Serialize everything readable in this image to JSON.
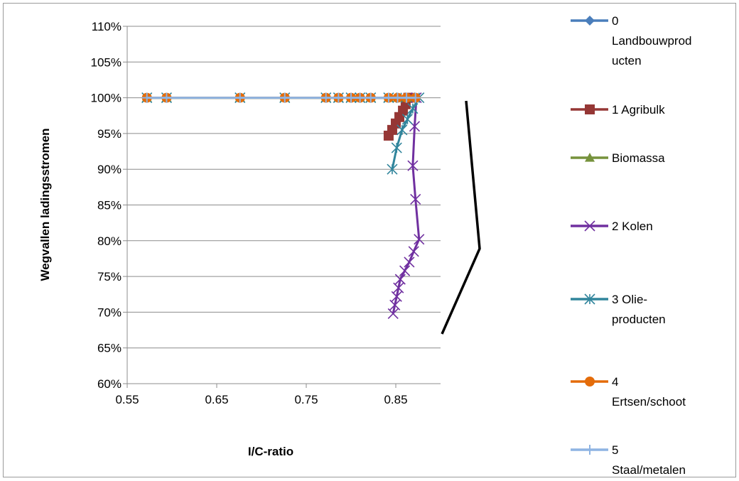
{
  "chart_data": {
    "type": "line",
    "title": "",
    "xlabel": "I/C-ratio",
    "ylabel": "Wegvallen ladingsstromen",
    "xlim": [
      0.55,
      0.9
    ],
    "ylim": [
      0.6,
      1.1
    ],
    "x_ticks": [
      "0.55",
      "0.65",
      "0.75",
      "0.85"
    ],
    "x_tick_values": [
      0.55,
      0.65,
      0.75,
      0.85
    ],
    "y_ticks": [
      "110%",
      "105%",
      "100%",
      "95%",
      "90%",
      "85%",
      "80%",
      "75%",
      "70%",
      "65%",
      "60%"
    ],
    "y_tick_values": [
      1.1,
      1.05,
      1.0,
      0.95,
      0.9,
      0.85,
      0.8,
      0.75,
      0.7,
      0.65,
      0.6
    ],
    "grid": true,
    "legend_position": "right",
    "series": [
      {
        "name": "0 Landbouwproducten",
        "legend_lines": [
          "0",
          "Landbouwprod",
          "ucten"
        ],
        "color": "#4a7ebb",
        "marker": "diamond",
        "points": [
          [
            0.572,
            1.0
          ],
          [
            0.594,
            1.0
          ],
          [
            0.676,
            1.0
          ],
          [
            0.726,
            1.0
          ],
          [
            0.772,
            1.0
          ],
          [
            0.786,
            1.0
          ],
          [
            0.8,
            1.0
          ],
          [
            0.81,
            1.0
          ],
          [
            0.822,
            1.0
          ],
          [
            0.842,
            1.0
          ],
          [
            0.852,
            1.0
          ],
          [
            0.862,
            1.0
          ],
          [
            0.872,
            1.0
          ]
        ]
      },
      {
        "name": "1 Agribulk",
        "legend_lines": [
          "1 Agribulk"
        ],
        "color": "#953735",
        "marker": "square",
        "points": [
          [
            0.842,
            0.947
          ],
          [
            0.846,
            0.955
          ],
          [
            0.85,
            0.964
          ],
          [
            0.854,
            0.973
          ],
          [
            0.858,
            0.982
          ],
          [
            0.861,
            0.991
          ],
          [
            0.864,
            1.0
          ]
        ]
      },
      {
        "name": "Biomassa",
        "legend_lines": [
          "Biomassa"
        ],
        "color": "#76923c",
        "marker": "triangle",
        "points": [
          [
            0.572,
            1.0
          ],
          [
            0.594,
            1.0
          ],
          [
            0.676,
            1.0
          ],
          [
            0.726,
            1.0
          ],
          [
            0.772,
            1.0
          ],
          [
            0.786,
            1.0
          ],
          [
            0.8,
            1.0
          ],
          [
            0.81,
            1.0
          ],
          [
            0.822,
            1.0
          ],
          [
            0.842,
            1.0
          ],
          [
            0.852,
            1.0
          ],
          [
            0.862,
            1.0
          ],
          [
            0.872,
            1.0
          ]
        ]
      },
      {
        "name": "2 Kolen",
        "legend_lines": [
          "2 Kolen"
        ],
        "color": "#7030a0",
        "marker": "x",
        "points": [
          [
            0.847,
            0.698
          ],
          [
            0.849,
            0.71
          ],
          [
            0.851,
            0.722
          ],
          [
            0.853,
            0.734
          ],
          [
            0.855,
            0.746
          ],
          [
            0.86,
            0.758
          ],
          [
            0.865,
            0.77
          ],
          [
            0.87,
            0.785
          ],
          [
            0.876,
            0.802
          ],
          [
            0.872,
            0.858
          ],
          [
            0.869,
            0.905
          ],
          [
            0.871,
            0.96
          ],
          [
            0.873,
            1.0
          ]
        ]
      },
      {
        "name": "3 Olie-producten",
        "legend_lines": [
          "3 Olie-",
          "producten"
        ],
        "color": "#31859c",
        "marker": "star",
        "points": [
          [
            0.846,
            0.9
          ],
          [
            0.851,
            0.93
          ],
          [
            0.857,
            0.955
          ],
          [
            0.863,
            0.97
          ],
          [
            0.869,
            0.985
          ],
          [
            0.876,
            1.0
          ],
          [
            0.572,
            1.0
          ],
          [
            0.594,
            1.0
          ],
          [
            0.676,
            1.0
          ],
          [
            0.726,
            1.0
          ],
          [
            0.772,
            1.0
          ],
          [
            0.786,
            1.0
          ],
          [
            0.8,
            1.0
          ],
          [
            0.81,
            1.0
          ],
          [
            0.822,
            1.0
          ],
          [
            0.842,
            1.0
          ],
          [
            0.856,
            1.0
          ]
        ]
      },
      {
        "name": "4 Ertsen/schoot",
        "legend_lines": [
          "4",
          "Ertsen/schoot"
        ],
        "color": "#e46c0a",
        "marker": "circle",
        "points": [
          [
            0.572,
            1.0
          ],
          [
            0.594,
            1.0
          ],
          [
            0.676,
            1.0
          ],
          [
            0.726,
            1.0
          ],
          [
            0.772,
            1.0
          ],
          [
            0.786,
            1.0
          ],
          [
            0.8,
            1.0
          ],
          [
            0.81,
            1.0
          ],
          [
            0.822,
            1.0
          ],
          [
            0.842,
            1.0
          ],
          [
            0.852,
            1.0
          ],
          [
            0.862,
            1.0
          ],
          [
            0.872,
            1.0
          ]
        ]
      },
      {
        "name": "5 Staal/metalen",
        "legend_lines": [
          "5",
          "Staal/metalen"
        ],
        "color": "#8eb4e3",
        "marker": "plus",
        "points": [
          [
            0.572,
            1.0
          ],
          [
            0.594,
            1.0
          ],
          [
            0.676,
            1.0
          ],
          [
            0.726,
            1.0
          ],
          [
            0.772,
            1.0
          ],
          [
            0.786,
            1.0
          ],
          [
            0.8,
            1.0
          ],
          [
            0.81,
            1.0
          ],
          [
            0.822,
            1.0
          ],
          [
            0.842,
            1.0
          ],
          [
            0.852,
            1.0
          ],
          [
            0.862,
            1.0
          ],
          [
            0.872,
            1.0
          ]
        ]
      }
    ],
    "annotation": {
      "type": "bracket",
      "color": "#000000"
    }
  }
}
